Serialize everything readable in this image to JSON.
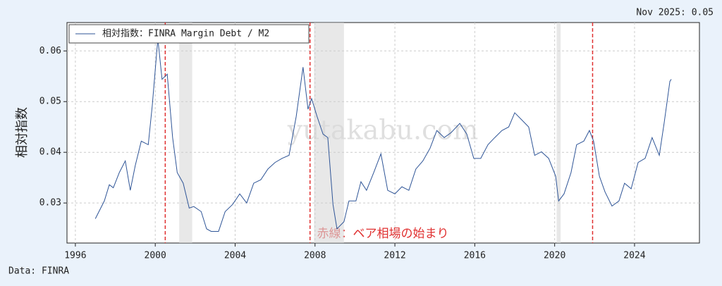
{
  "chart_data": {
    "type": "line",
    "ylabel": "相対指数",
    "annotations": {
      "latest": "Nov 2025: 0.05",
      "source": "Data: FINRA",
      "note": "赤線：ベア相場の始まり",
      "watermark": "yutakabu.com"
    },
    "xlim": [
      1995.58,
      2027.25
    ],
    "xticks": [
      1996,
      2000,
      2004,
      2008,
      2012,
      2016,
      2020,
      2024
    ],
    "ylim": [
      0.0221,
      0.0656
    ],
    "yticks": [
      0.03,
      0.04,
      0.05,
      0.06
    ],
    "grid": true,
    "legend": "upper left",
    "shaded_periods": [
      [
        2001.2,
        2001.85
      ],
      [
        2007.95,
        2009.45
      ],
      [
        2020.1,
        2020.3
      ]
    ],
    "bear_market_starts": [
      2000.5,
      2007.75,
      2021.9
    ],
    "series": [
      {
        "name": "相対指数：FINRA Margin Debt / M2",
        "color": "#2f5597",
        "x": [
          1997.0,
          1997.45,
          1997.7,
          1997.9,
          1998.2,
          1998.5,
          1998.75,
          1999.0,
          1999.3,
          1999.65,
          1999.85,
          2000.13,
          2000.34,
          2000.6,
          2000.87,
          2001.1,
          2001.4,
          2001.7,
          2001.93,
          2002.3,
          2002.57,
          2002.8,
          2003.17,
          2003.5,
          2003.87,
          2004.23,
          2004.58,
          2004.93,
          2005.29,
          2005.64,
          2006.0,
          2006.35,
          2006.7,
          2007.06,
          2007.4,
          2007.65,
          2007.83,
          2008.1,
          2008.4,
          2008.64,
          2008.9,
          2009.1,
          2009.45,
          2009.7,
          2010.05,
          2010.3,
          2010.58,
          2010.94,
          2011.3,
          2011.64,
          2012.0,
          2012.35,
          2012.7,
          2013.05,
          2013.4,
          2013.76,
          2014.1,
          2014.47,
          2014.82,
          2015.25,
          2015.6,
          2015.95,
          2016.3,
          2016.66,
          2017.0,
          2017.36,
          2017.7,
          2018.0,
          2018.35,
          2018.7,
          2019.0,
          2019.34,
          2019.7,
          2020.05,
          2020.2,
          2020.47,
          2020.82,
          2021.1,
          2021.46,
          2021.74,
          2021.95,
          2022.24,
          2022.52,
          2022.87,
          2023.22,
          2023.5,
          2023.83,
          2024.18,
          2024.53,
          2024.88,
          2025.24,
          2025.48,
          2025.77,
          2025.84
        ],
        "values": [
          0.0269,
          0.0304,
          0.0336,
          0.033,
          0.036,
          0.0383,
          0.0325,
          0.0374,
          0.0422,
          0.0415,
          0.0492,
          0.0624,
          0.0544,
          0.0554,
          0.0429,
          0.036,
          0.0339,
          0.029,
          0.0293,
          0.0283,
          0.0249,
          0.0244,
          0.0244,
          0.0283,
          0.0297,
          0.0318,
          0.03,
          0.0339,
          0.0346,
          0.0367,
          0.038,
          0.0388,
          0.0394,
          0.0471,
          0.0568,
          0.0485,
          0.0506,
          0.0471,
          0.0436,
          0.0429,
          0.0297,
          0.0249,
          0.0263,
          0.0304,
          0.0304,
          0.0342,
          0.0325,
          0.036,
          0.0397,
          0.0325,
          0.0318,
          0.0332,
          0.0325,
          0.0367,
          0.0383,
          0.0408,
          0.0443,
          0.0429,
          0.0439,
          0.0457,
          0.0436,
          0.0388,
          0.0388,
          0.0415,
          0.0429,
          0.0443,
          0.045,
          0.0478,
          0.0464,
          0.045,
          0.0394,
          0.0401,
          0.0388,
          0.0353,
          0.0304,
          0.0318,
          0.036,
          0.0415,
          0.0422,
          0.0443,
          0.0422,
          0.0353,
          0.0322,
          0.0294,
          0.0304,
          0.0339,
          0.0328,
          0.038,
          0.0388,
          0.0429,
          0.0394,
          0.0457,
          0.054,
          0.0544
        ]
      }
    ]
  }
}
